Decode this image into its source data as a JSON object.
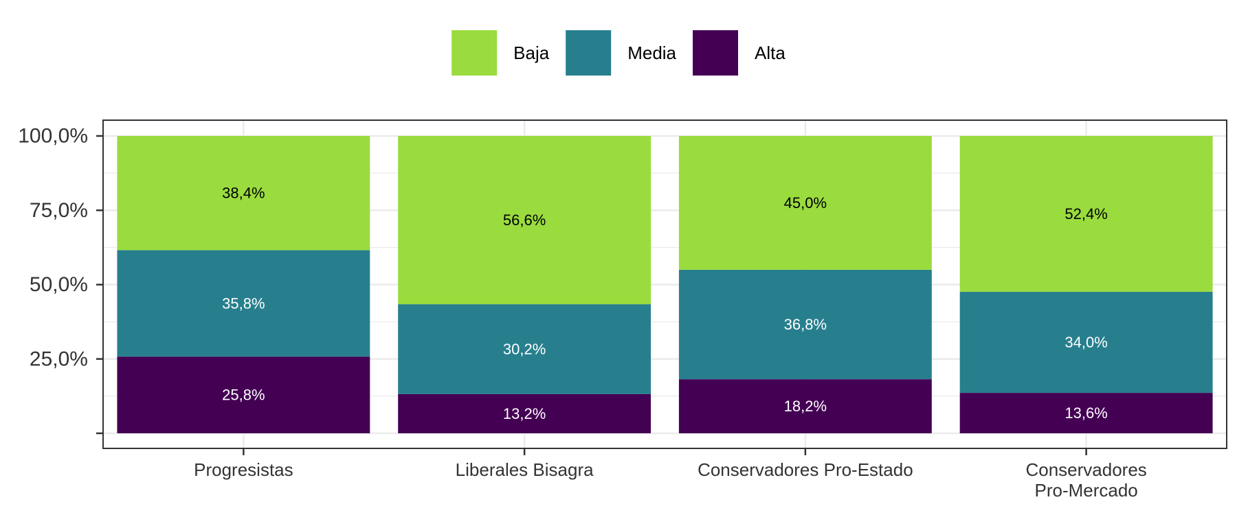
{
  "chart_data": {
    "type": "bar",
    "stacked": true,
    "categories": [
      "Progresistas",
      "Liberales Bisagra",
      "Conservadores Pro-Estado",
      "Conservadores Pro-Mercado"
    ],
    "category_label_lines": [
      [
        "Progresistas"
      ],
      [
        "Liberales Bisagra"
      ],
      [
        "Conservadores Pro-Estado"
      ],
      [
        "Conservadores",
        "Pro-Mercado"
      ]
    ],
    "series": [
      {
        "name": "Alta",
        "values": [
          25.8,
          13.2,
          18.2,
          13.6
        ],
        "labels": [
          "25,8%",
          "13,2%",
          "18,2%",
          "13,6%"
        ],
        "color": "#440154",
        "label_color": "#ffffff"
      },
      {
        "name": "Media",
        "values": [
          35.8,
          30.2,
          36.8,
          34.0
        ],
        "labels": [
          "35,8%",
          "30,2%",
          "36,8%",
          "34,0%"
        ],
        "color": "#277F8E",
        "label_color": "#ffffff"
      },
      {
        "name": "Baja",
        "values": [
          38.4,
          56.6,
          45.0,
          52.4
        ],
        "labels": [
          "38,4%",
          "56,6%",
          "45,0%",
          "52,4%"
        ],
        "color": "#9ADB3E",
        "label_color": "#000000"
      }
    ],
    "legend_order": [
      "Baja",
      "Media",
      "Alta"
    ],
    "legend_position": "top",
    "ylim": [
      0,
      100
    ],
    "y_ticks": [
      0,
      25,
      50,
      75,
      100
    ],
    "y_tick_labels": [
      "",
      "25,0%",
      "50,0%",
      "75,0%",
      "100,0%"
    ],
    "title": "",
    "xlabel": "",
    "ylabel": "",
    "grid": true
  }
}
